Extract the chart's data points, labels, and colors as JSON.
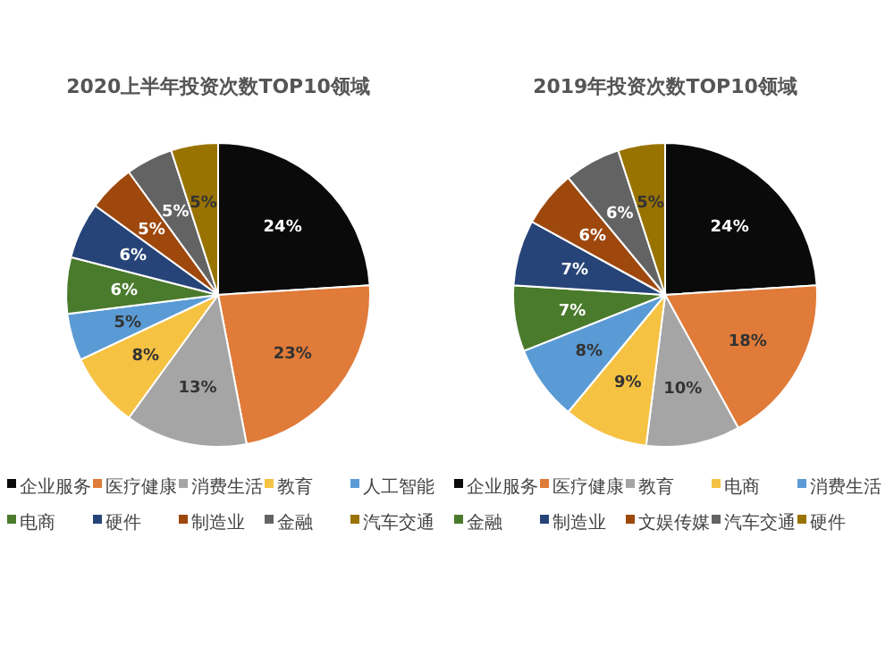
{
  "chart_data": [
    {
      "type": "pie",
      "title": "2020上半年投资次数TOP10领域",
      "categories": [
        "企业服务",
        "医疗健康",
        "消费生活",
        "教育",
        "人工智能",
        "电商",
        "硬件",
        "制造业",
        "金融",
        "汽车交通"
      ],
      "values": [
        24,
        23,
        13,
        8,
        5,
        6,
        6,
        5,
        5,
        5
      ],
      "value_labels": [
        "24%",
        "23%",
        "13%",
        "8%",
        "5%",
        "6%",
        "6%",
        "5%",
        "5%",
        "5%"
      ],
      "colors": [
        "#0a0a0a",
        "#e07b39",
        "#a5a5a5",
        "#f5c242",
        "#5b9bd5",
        "#4a7a2c",
        "#264478",
        "#9e480e",
        "#636363",
        "#997300"
      ],
      "legend": "bottom"
    },
    {
      "type": "pie",
      "title": "2019年投资次数TOP10领域",
      "categories": [
        "企业服务",
        "医疗健康",
        "教育",
        "电商",
        "消费生活",
        "金融",
        "制造业",
        "文娱传媒",
        "汽车交通",
        "硬件"
      ],
      "values": [
        24,
        18,
        10,
        9,
        8,
        7,
        7,
        6,
        6,
        5
      ],
      "value_labels": [
        "24%",
        "18%",
        "10%",
        "9%",
        "8%",
        "7%",
        "7%",
        "6%",
        "6%",
        "5%"
      ],
      "colors": [
        "#0a0a0a",
        "#e07b39",
        "#a5a5a5",
        "#f5c242",
        "#5b9bd5",
        "#4a7a2c",
        "#264478",
        "#9e480e",
        "#636363",
        "#997300"
      ],
      "legend": "bottom"
    }
  ]
}
